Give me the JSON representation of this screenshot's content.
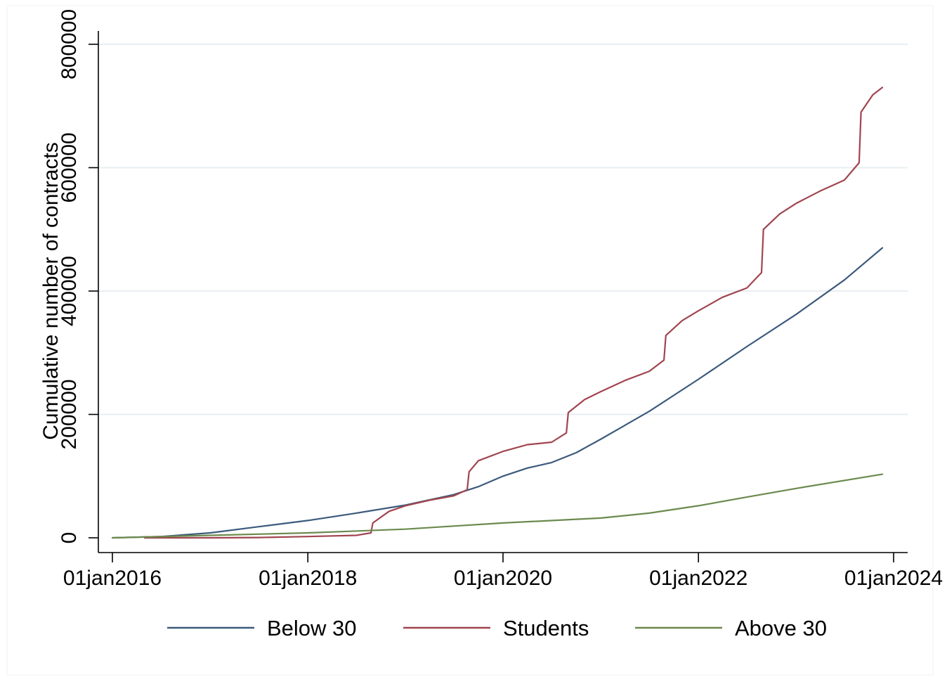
{
  "chart_data": {
    "type": "line",
    "title": "",
    "xlabel": "",
    "ylabel": "Cumulative number of contracts",
    "x_type": "date",
    "x_ticks": [
      "2016-01-01",
      "2018-01-01",
      "2020-01-01",
      "2022-01-01",
      "2024-01-01"
    ],
    "x_tick_labels": [
      "01jan2016",
      "01jan2018",
      "01jan2020",
      "01jan2022",
      "01jan2024"
    ],
    "xlim": [
      "2016-01-01",
      "2024-01-01"
    ],
    "y_ticks": [
      0,
      200000,
      400000,
      600000,
      800000
    ],
    "y_tick_labels": [
      "0",
      "200000",
      "400000",
      "600000",
      "800000"
    ],
    "ylim": [
      0,
      800000
    ],
    "grid": "horizontal",
    "legend_position": "bottom",
    "series": [
      {
        "name": "Below 30",
        "color": "#3c5a7c",
        "points": [
          [
            "2016-01-01",
            0
          ],
          [
            "2016-07-01",
            2000
          ],
          [
            "2017-01-01",
            8000
          ],
          [
            "2017-07-01",
            18000
          ],
          [
            "2018-01-01",
            28000
          ],
          [
            "2018-07-01",
            40000
          ],
          [
            "2019-01-01",
            53000
          ],
          [
            "2019-07-01",
            70000
          ],
          [
            "2019-10-01",
            83000
          ],
          [
            "2020-01-01",
            100000
          ],
          [
            "2020-04-01",
            113000
          ],
          [
            "2020-07-01",
            122000
          ],
          [
            "2020-10-01",
            138000
          ],
          [
            "2021-01-01",
            160000
          ],
          [
            "2021-07-01",
            205000
          ],
          [
            "2022-01-01",
            257000
          ],
          [
            "2022-07-01",
            310000
          ],
          [
            "2023-01-01",
            362000
          ],
          [
            "2023-07-01",
            418000
          ],
          [
            "2023-11-20",
            470000
          ]
        ]
      },
      {
        "name": "Students",
        "color": "#a0454f",
        "points": [
          [
            "2016-05-01",
            0
          ],
          [
            "2017-01-01",
            0
          ],
          [
            "2017-07-01",
            500
          ],
          [
            "2018-01-01",
            2000
          ],
          [
            "2018-07-01",
            4000
          ],
          [
            "2018-08-25",
            8000
          ],
          [
            "2018-09-01",
            24000
          ],
          [
            "2018-11-01",
            43000
          ],
          [
            "2019-01-01",
            52000
          ],
          [
            "2019-04-01",
            61000
          ],
          [
            "2019-07-01",
            68000
          ],
          [
            "2019-08-20",
            78000
          ],
          [
            "2019-08-27",
            107000
          ],
          [
            "2019-10-01",
            125000
          ],
          [
            "2020-01-01",
            140000
          ],
          [
            "2020-04-01",
            151000
          ],
          [
            "2020-07-01",
            155000
          ],
          [
            "2020-08-25",
            170000
          ],
          [
            "2020-09-01",
            203000
          ],
          [
            "2020-11-01",
            224000
          ],
          [
            "2021-01-01",
            237000
          ],
          [
            "2021-04-01",
            255000
          ],
          [
            "2021-07-01",
            270000
          ],
          [
            "2021-08-25",
            288000
          ],
          [
            "2021-09-01",
            328000
          ],
          [
            "2021-11-01",
            352000
          ],
          [
            "2022-01-01",
            368000
          ],
          [
            "2022-04-01",
            390000
          ],
          [
            "2022-07-01",
            405000
          ],
          [
            "2022-08-25",
            430000
          ],
          [
            "2022-09-01",
            500000
          ],
          [
            "2022-11-01",
            525000
          ],
          [
            "2023-01-01",
            542000
          ],
          [
            "2023-04-01",
            562000
          ],
          [
            "2023-07-01",
            580000
          ],
          [
            "2023-08-25",
            608000
          ],
          [
            "2023-09-01",
            690000
          ],
          [
            "2023-10-15",
            718000
          ],
          [
            "2023-11-20",
            730000
          ]
        ]
      },
      {
        "name": "Above 30",
        "color": "#6b8a4e",
        "points": [
          [
            "2016-01-01",
            0
          ],
          [
            "2017-01-01",
            4000
          ],
          [
            "2018-01-01",
            8000
          ],
          [
            "2019-01-01",
            14000
          ],
          [
            "2019-07-01",
            19000
          ],
          [
            "2020-01-01",
            24000
          ],
          [
            "2021-01-01",
            32000
          ],
          [
            "2021-07-01",
            40000
          ],
          [
            "2022-01-01",
            52000
          ],
          [
            "2022-07-01",
            66000
          ],
          [
            "2023-01-01",
            80000
          ],
          [
            "2023-11-20",
            103000
          ]
        ]
      }
    ]
  }
}
